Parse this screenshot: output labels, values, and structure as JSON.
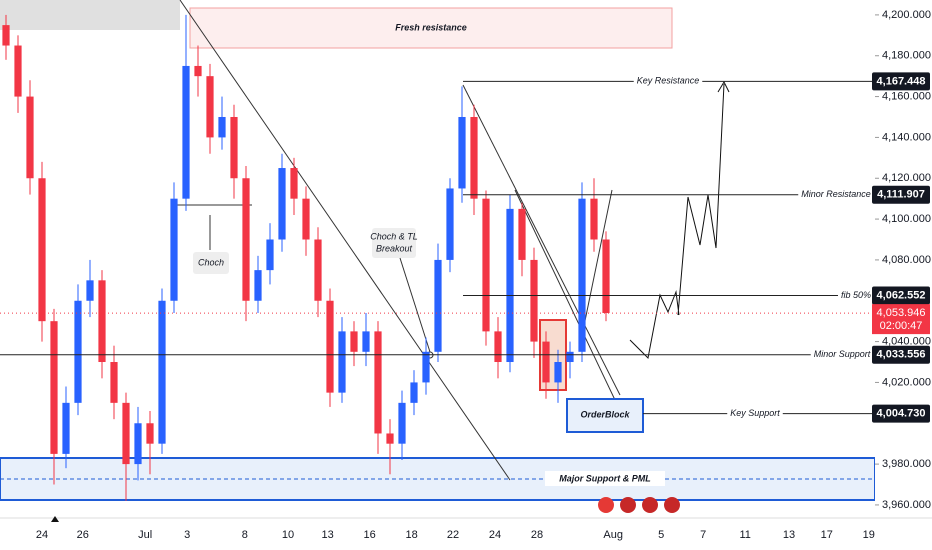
{
  "chart_data": {
    "type": "candlestick",
    "x": [
      0,
      1,
      2,
      3,
      4,
      5,
      6,
      7,
      8,
      9,
      10,
      11,
      12,
      13,
      14,
      15,
      16,
      17,
      18,
      19,
      20,
      21,
      22,
      23,
      24,
      25,
      26,
      27,
      28,
      29,
      30,
      31,
      32,
      33,
      34,
      35,
      36,
      37,
      38,
      39,
      40,
      41,
      42,
      43,
      44,
      45,
      46,
      47,
      48,
      49,
      50
    ],
    "open": [
      4195,
      4185,
      4160,
      4120,
      4050,
      3985,
      4010,
      4060,
      4070,
      4030,
      4010,
      3980,
      4000,
      3990,
      4060,
      4110,
      4175,
      4170,
      4140,
      4150,
      4120,
      4060,
      4075,
      4090,
      4125,
      4110,
      4090,
      4060,
      4015,
      4045,
      4035,
      4045,
      3995,
      3990,
      4010,
      4020,
      4035,
      4080,
      4115,
      4150,
      4110,
      4045,
      4030,
      4105,
      4080,
      4040,
      4020,
      4030,
      4035,
      4110,
      4090
    ],
    "high": [
      4200,
      4190,
      4168,
      4128,
      4056,
      4018,
      4068,
      4080,
      4075,
      4038,
      4015,
      4008,
      4006,
      4066,
      4118,
      4200,
      4185,
      4176,
      4160,
      4156,
      4126,
      4082,
      4098,
      4132,
      4130,
      4116,
      4096,
      4066,
      4052,
      4050,
      4054,
      4050,
      4002,
      4016,
      4026,
      4042,
      4088,
      4120,
      4165,
      4156,
      4114,
      4052,
      4112,
      4108,
      4086,
      4045,
      4036,
      4040,
      4118,
      4120,
      4094
    ],
    "low": [
      4178,
      4152,
      4112,
      4040,
      3970,
      3978,
      4004,
      4052,
      4022,
      4002,
      3962,
      3972,
      3975,
      3985,
      4054,
      4104,
      4160,
      4132,
      4134,
      4110,
      4050,
      4054,
      4068,
      4084,
      4102,
      4082,
      4052,
      4008,
      4010,
      4028,
      4028,
      3985,
      3975,
      3982,
      4004,
      4014,
      4030,
      4074,
      4108,
      4102,
      4038,
      4022,
      4025,
      4072,
      4032,
      4012,
      4010,
      4022,
      4030,
      4084,
      4050
    ],
    "close": [
      4185,
      4160,
      4120,
      4050,
      3985,
      4010,
      4060,
      4070,
      4030,
      4010,
      3980,
      4000,
      3990,
      4060,
      4110,
      4175,
      4170,
      4140,
      4150,
      4120,
      4060,
      4075,
      4090,
      4125,
      4110,
      4090,
      4060,
      4015,
      4045,
      4035,
      4045,
      3995,
      3990,
      4010,
      4020,
      4035,
      4080,
      4115,
      4150,
      4110,
      4045,
      4030,
      4105,
      4080,
      4040,
      4020,
      4030,
      4035,
      4110,
      4090,
      4054
    ],
    "up_color": "#2962ff",
    "down_color": "#f23645",
    "xlim": [
      -0.5,
      72.417
    ],
    "xticks": [
      {
        "value": 3,
        "label": "24"
      },
      {
        "value": 6.4,
        "label": "26"
      },
      {
        "value": 11.6,
        "label": "Jul"
      },
      {
        "value": 15.1,
        "label": "3"
      },
      {
        "value": 19.9,
        "label": "8"
      },
      {
        "value": 23.5,
        "label": "10"
      },
      {
        "value": 26.8,
        "label": "13"
      },
      {
        "value": 30.3,
        "label": "16"
      },
      {
        "value": 33.8,
        "label": "18"
      },
      {
        "value": 37.25,
        "label": "22"
      },
      {
        "value": 40.75,
        "label": "24"
      },
      {
        "value": 44.25,
        "label": "28"
      },
      {
        "value": 50.6,
        "label": "Aug"
      },
      {
        "value": 54.6,
        "label": "5"
      },
      {
        "value": 58.1,
        "label": "7"
      },
      {
        "value": 61.6,
        "label": "11"
      },
      {
        "value": 65.25,
        "label": "13"
      },
      {
        "value": 68.4,
        "label": "17"
      },
      {
        "value": 71.9,
        "label": "19"
      }
    ],
    "ylim": [
      3953.6,
      4207.3
    ],
    "yticks": [
      {
        "value": 4200,
        "label": "4,200.000"
      },
      {
        "value": 4180,
        "label": "4,180.000"
      },
      {
        "value": 4160,
        "label": "4,160.000"
      },
      {
        "value": 4140,
        "label": "4,140.000"
      },
      {
        "value": 4120,
        "label": "4,120.000"
      },
      {
        "value": 4100,
        "label": "4,100.000"
      },
      {
        "value": 4080,
        "label": "4,080.000"
      },
      {
        "value": 4040,
        "label": "4,040.000"
      },
      {
        "value": 4020,
        "label": "4,020.000"
      },
      {
        "value": 3980,
        "label": "3,980.000"
      },
      {
        "value": 3960,
        "label": "3,960.000"
      }
    ],
    "levels": [
      {
        "name": "Key Resistance",
        "value": 4167.448,
        "label": "4,167.448"
      },
      {
        "name": "Minor Resistance",
        "value": 4111.907,
        "label": "4,111.907"
      },
      {
        "name": "fib 50%",
        "value": 4062.552,
        "label": "4,062.552"
      },
      {
        "name": "Minor Support",
        "value": 4033.556,
        "label": "4,033.556"
      },
      {
        "name": "Key Support",
        "value": 4004.73,
        "label": "4,004.730"
      }
    ],
    "last_price": {
      "value": 4053.946,
      "label": "4,053.946",
      "countdown": "02:00:47"
    },
    "annotations": {
      "fresh_resistance": "Fresh resistance",
      "major_support": "Major Support & PML",
      "order_block": "OrderBlock",
      "choch": "Choch",
      "choch_breakout": [
        "Choch & TL",
        "Breakout"
      ]
    }
  }
}
